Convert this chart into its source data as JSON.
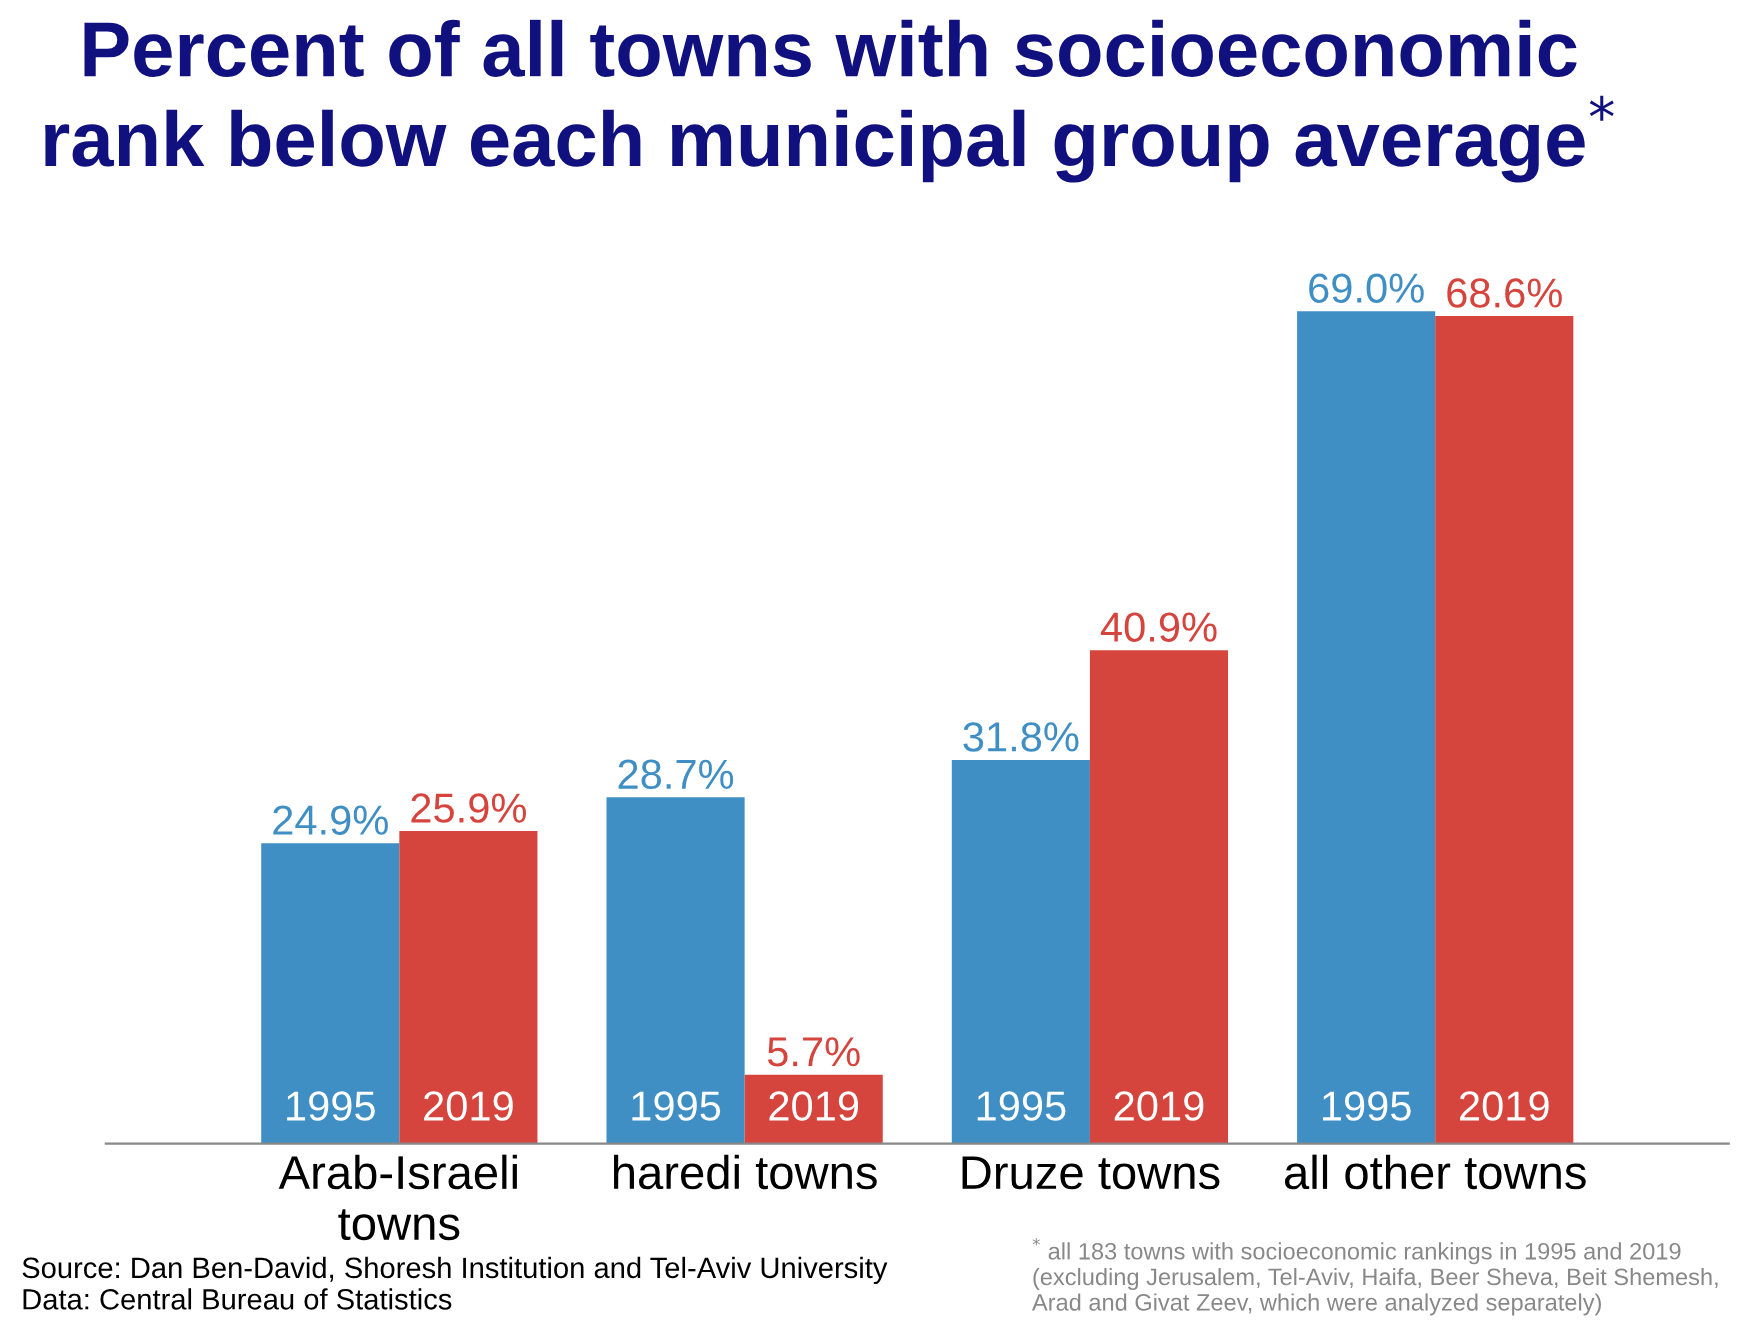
{
  "chart_data": {
    "type": "bar",
    "title": "Percent of all towns with socioeconomic\nrank below each municipal group average$^{*}$",
    "categories": [
      "Arab-Israeli\ntowns",
      "haredi towns",
      "Druze towns",
      "all other towns"
    ],
    "series": [
      {
        "name": "1995",
        "color": "#3f8fc4",
        "values": [
          24.9,
          28.7,
          31.8,
          69.0
        ],
        "value_labels": [
          "24.9%",
          "28.7%",
          "31.8%",
          "69.0%"
        ]
      },
      {
        "name": "2019",
        "color": "#d5443d",
        "values": [
          25.9,
          5.7,
          40.9,
          68.6
        ],
        "value_labels": [
          "25.9%",
          "5.7%",
          "40.9%",
          "68.6%"
        ]
      }
    ],
    "legend": false,
    "grid": false,
    "annotations": [
      "Source: Dan Ben-David, Shoresh Institution and Tel-Aviv University\nData: Central Bureau of Statistics",
      "$^{*}$ all 183 towns with socioeconomic rankings in 1995 and 2019\n(excluding Jerusalem, Tel-Aviv, Haifa, Beer Sheva, Beit Shemesh,\nArad and Givat Zeev, which were analyzed separately)"
    ]
  }
}
